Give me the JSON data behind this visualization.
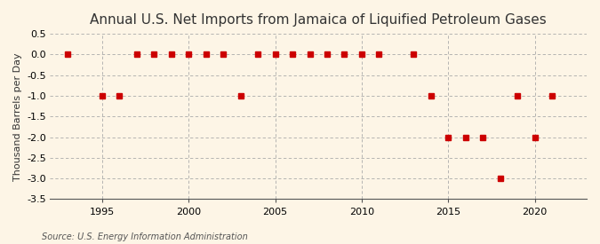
{
  "title": "Annual U.S. Net Imports from Jamaica of Liquified Petroleum Gases",
  "ylabel": "Thousand Barrels per Day",
  "source": "Source: U.S. Energy Information Administration",
  "background_color": "#fdf5e6",
  "years": [
    1993,
    1995,
    1996,
    1997,
    1998,
    1999,
    2000,
    2001,
    2002,
    2003,
    2004,
    2005,
    2006,
    2007,
    2008,
    2009,
    2010,
    2011,
    2013,
    2014,
    2015,
    2016,
    2017,
    2018,
    2019,
    2020,
    2021
  ],
  "values": [
    0.0,
    -1.0,
    -1.0,
    0.0,
    0.0,
    0.0,
    0.0,
    0.0,
    0.0,
    -1.0,
    0.0,
    0.0,
    0.0,
    0.0,
    0.0,
    0.0,
    0.0,
    0.0,
    0.0,
    -1.0,
    -2.0,
    -2.0,
    -2.0,
    -3.0,
    -1.0,
    -2.0,
    -1.0
  ],
  "marker_color": "#cc0000",
  "marker_size": 5,
  "ylim": [
    -3.5,
    0.5
  ],
  "yticks": [
    0.5,
    0.0,
    -0.5,
    -1.0,
    -1.5,
    -2.0,
    -2.5,
    -3.0,
    -3.5
  ],
  "ytick_labels": [
    "0.5",
    "0.0",
    "-0.5",
    "-1.0",
    "-1.5",
    "-2.0",
    "-2.5",
    "-3.0",
    "-3.5"
  ],
  "xlim": [
    1992,
    2023
  ],
  "xticks": [
    1995,
    2000,
    2005,
    2010,
    2015,
    2020
  ],
  "grid_color": "#aaaaaa",
  "vline_color": "#aaaaaa",
  "title_fontsize": 11,
  "label_fontsize": 8,
  "tick_fontsize": 8,
  "source_fontsize": 7
}
